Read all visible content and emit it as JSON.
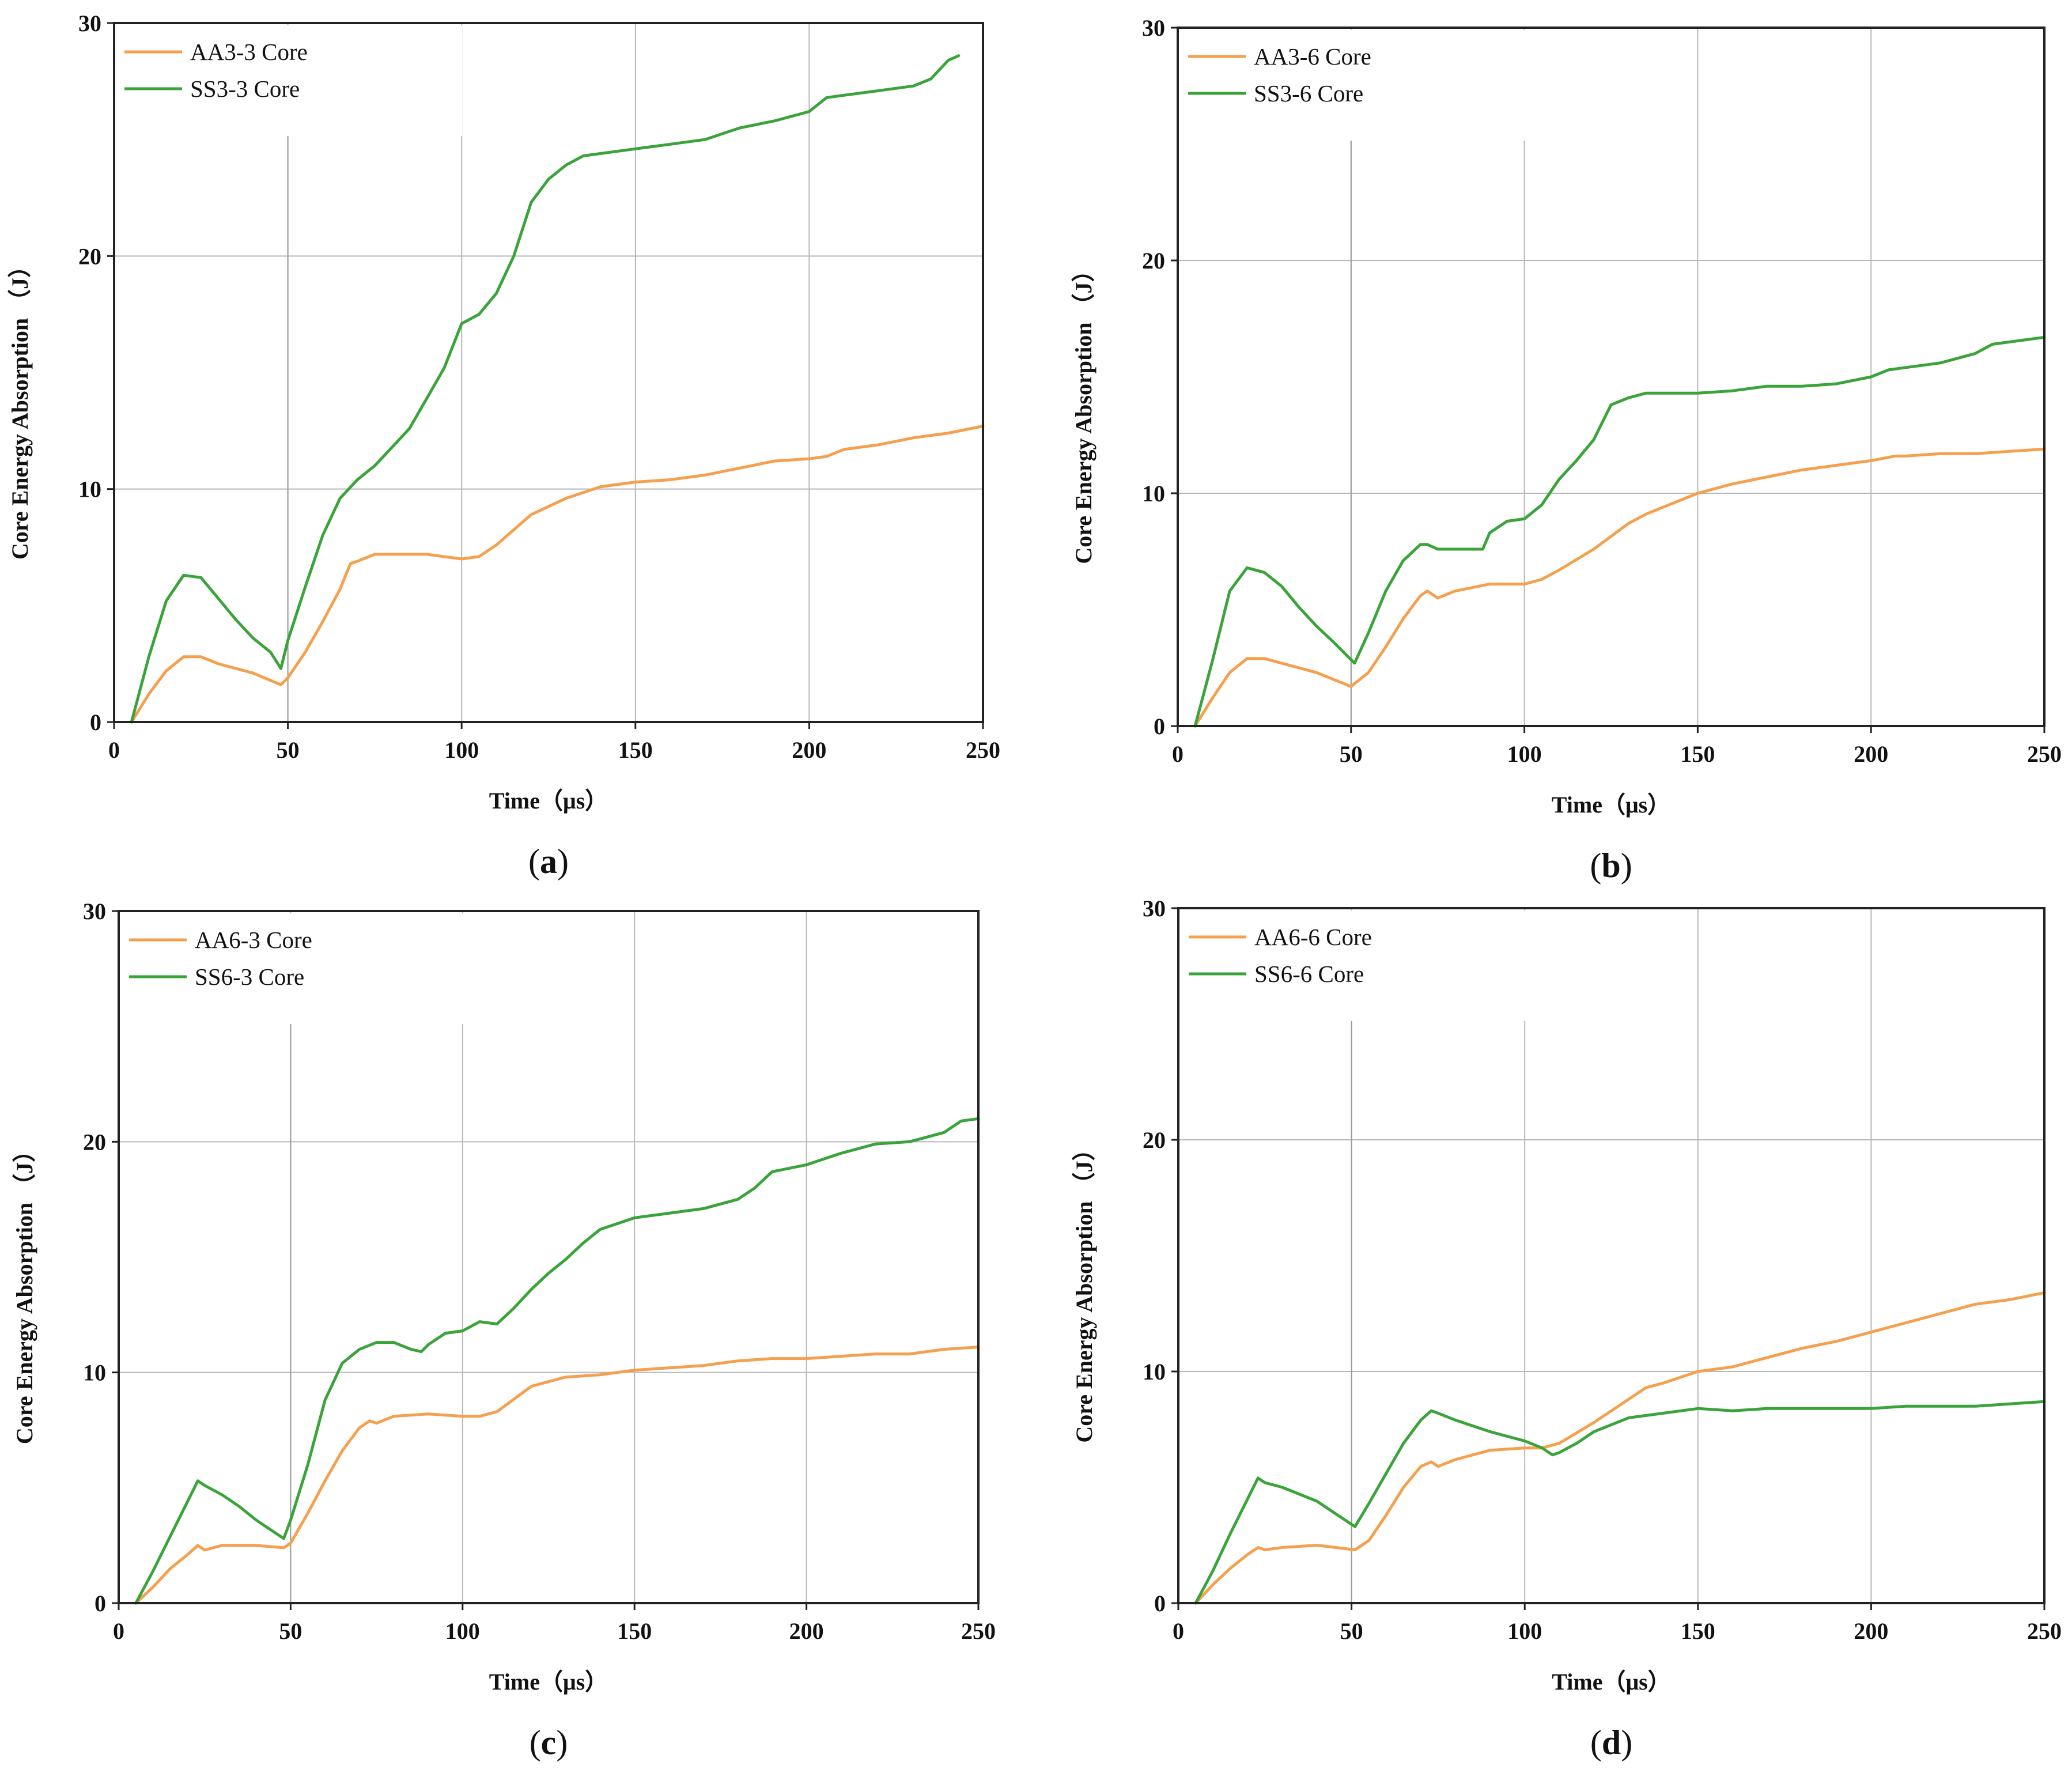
{
  "colors": {
    "orange": "#f5a04e",
    "green": "#3aa33a",
    "grid": "#b8b8b8",
    "axis": "#222222"
  },
  "chart_data": [
    {
      "panel": "a",
      "type": "line",
      "caption_letter": "a",
      "xlabel": "Time（μs）",
      "ylabel": "Core Energy Absorption （J）",
      "xlim": [
        0,
        250
      ],
      "ylim": [
        0,
        30
      ],
      "xticks": [
        "0",
        "50",
        "100",
        "150",
        "200",
        "250"
      ],
      "yticks": [
        "0",
        "10",
        "20",
        "30"
      ],
      "legend_position": "top-left",
      "series": [
        {
          "name": "AA3-3 Core",
          "color": "orange",
          "x": [
            5,
            10,
            15,
            20,
            25,
            30,
            40,
            48,
            50,
            55,
            60,
            65,
            68,
            70,
            75,
            80,
            90,
            100,
            105,
            110,
            120,
            130,
            140,
            150,
            160,
            170,
            180,
            190,
            200,
            205,
            210,
            220,
            230,
            240,
            250
          ],
          "y": [
            0,
            1.2,
            2.2,
            2.8,
            2.8,
            2.5,
            2.1,
            1.6,
            1.9,
            3.0,
            4.3,
            5.7,
            6.8,
            6.9,
            7.2,
            7.2,
            7.2,
            7.0,
            7.1,
            7.6,
            8.9,
            9.6,
            10.1,
            10.3,
            10.4,
            10.6,
            10.9,
            11.2,
            11.3,
            11.4,
            11.7,
            11.9,
            12.2,
            12.4,
            12.7
          ]
        },
        {
          "name": "SS3-3 Core",
          "color": "green",
          "x": [
            5,
            10,
            15,
            20,
            25,
            30,
            35,
            40,
            45,
            48,
            50,
            55,
            60,
            65,
            70,
            75,
            80,
            85,
            90,
            95,
            100,
            105,
            110,
            115,
            120,
            125,
            130,
            135,
            140,
            150,
            160,
            170,
            180,
            190,
            200,
            205,
            210,
            220,
            230,
            235,
            240,
            243
          ],
          "y": [
            0,
            2.8,
            5.2,
            6.3,
            6.2,
            5.3,
            4.4,
            3.6,
            3.0,
            2.3,
            3.5,
            5.8,
            8.0,
            9.6,
            10.4,
            11.0,
            11.8,
            12.6,
            13.9,
            15.2,
            17.1,
            17.5,
            18.4,
            20.0,
            22.3,
            23.3,
            23.9,
            24.3,
            24.4,
            24.6,
            24.8,
            25.0,
            25.5,
            25.8,
            26.2,
            26.8,
            26.9,
            27.1,
            27.3,
            27.6,
            28.4,
            28.6
          ]
        }
      ]
    },
    {
      "panel": "b",
      "type": "line",
      "caption_letter": "b",
      "xlabel": "Time（μs）",
      "ylabel": "Core Energy Absorption （J）",
      "xlim": [
        0,
        250
      ],
      "ylim": [
        0,
        30
      ],
      "xticks": [
        "0",
        "50",
        "100",
        "150",
        "200",
        "250"
      ],
      "yticks": [
        "0",
        "10",
        "20",
        "30"
      ],
      "legend_position": "top-left",
      "series": [
        {
          "name": "AA3-6 Core",
          "color": "orange",
          "x": [
            5,
            10,
            15,
            20,
            25,
            30,
            40,
            50,
            55,
            60,
            65,
            70,
            72,
            75,
            80,
            90,
            100,
            105,
            110,
            120,
            130,
            135,
            140,
            150,
            160,
            170,
            180,
            190,
            200,
            207,
            210,
            220,
            230,
            240,
            250
          ],
          "y": [
            0,
            1.2,
            2.3,
            2.9,
            2.9,
            2.7,
            2.3,
            1.7,
            2.3,
            3.4,
            4.6,
            5.6,
            5.8,
            5.5,
            5.8,
            6.1,
            6.1,
            6.3,
            6.7,
            7.6,
            8.7,
            9.1,
            9.4,
            10.0,
            10.4,
            10.7,
            11.0,
            11.2,
            11.4,
            11.6,
            11.6,
            11.7,
            11.7,
            11.8,
            11.9
          ]
        },
        {
          "name": "SS3-6 Core",
          "color": "green",
          "x": [
            5,
            10,
            15,
            20,
            25,
            30,
            35,
            40,
            45,
            51,
            55,
            60,
            65,
            70,
            72,
            75,
            80,
            85,
            88,
            90,
            95,
            100,
            105,
            110,
            115,
            120,
            125,
            130,
            135,
            140,
            150,
            160,
            170,
            180,
            190,
            200,
            205,
            210,
            220,
            230,
            235,
            240,
            250
          ],
          "y": [
            0,
            2.8,
            5.8,
            6.8,
            6.6,
            6.0,
            5.1,
            4.3,
            3.6,
            2.7,
            4.0,
            5.8,
            7.1,
            7.8,
            7.8,
            7.6,
            7.6,
            7.6,
            7.6,
            8.3,
            8.8,
            8.9,
            9.5,
            10.6,
            11.4,
            12.3,
            13.8,
            14.1,
            14.3,
            14.3,
            14.3,
            14.4,
            14.6,
            14.6,
            14.7,
            15.0,
            15.3,
            15.4,
            15.6,
            16.0,
            16.4,
            16.5,
            16.7
          ]
        }
      ]
    },
    {
      "panel": "c",
      "type": "line",
      "caption_letter": "c",
      "xlabel": "Time（μs）",
      "ylabel": "Core Energy Absorption （J）",
      "xlim": [
        0,
        250
      ],
      "ylim": [
        0,
        30
      ],
      "xticks": [
        "0",
        "50",
        "100",
        "150",
        "200",
        "250"
      ],
      "yticks": [
        "0",
        "10",
        "20",
        "30"
      ],
      "legend_position": "top-left",
      "series": [
        {
          "name": "AA6-3 Core",
          "color": "orange",
          "x": [
            5,
            10,
            15,
            20,
            23,
            25,
            30,
            40,
            48,
            50,
            55,
            60,
            65,
            70,
            73,
            75,
            80,
            90,
            100,
            105,
            110,
            120,
            130,
            140,
            150,
            160,
            170,
            180,
            190,
            200,
            210,
            220,
            230,
            240,
            250
          ],
          "y": [
            0,
            0.7,
            1.5,
            2.1,
            2.5,
            2.3,
            2.5,
            2.5,
            2.4,
            2.6,
            3.9,
            5.3,
            6.6,
            7.6,
            7.9,
            7.8,
            8.1,
            8.2,
            8.1,
            8.1,
            8.3,
            9.4,
            9.8,
            9.9,
            10.1,
            10.2,
            10.3,
            10.5,
            10.6,
            10.6,
            10.7,
            10.8,
            10.8,
            11.0,
            11.1
          ]
        },
        {
          "name": "SS6-3 Core",
          "color": "green",
          "x": [
            5,
            10,
            15,
            20,
            23,
            25,
            30,
            35,
            40,
            45,
            48,
            50,
            55,
            60,
            65,
            70,
            75,
            80,
            85,
            88,
            90,
            95,
            100,
            105,
            110,
            115,
            120,
            125,
            130,
            135,
            140,
            150,
            160,
            170,
            180,
            185,
            190,
            200,
            210,
            220,
            230,
            240,
            245,
            250
          ],
          "y": [
            0,
            1.4,
            2.9,
            4.4,
            5.3,
            5.1,
            4.7,
            4.2,
            3.6,
            3.1,
            2.8,
            3.6,
            6.0,
            8.8,
            10.4,
            11.0,
            11.3,
            11.3,
            11.0,
            10.9,
            11.2,
            11.7,
            11.8,
            12.2,
            12.1,
            12.8,
            13.6,
            14.3,
            14.9,
            15.6,
            16.2,
            16.7,
            16.9,
            17.1,
            17.5,
            18.0,
            18.7,
            19.0,
            19.5,
            19.9,
            20.0,
            20.4,
            20.9,
            21.0
          ]
        }
      ]
    },
    {
      "panel": "d",
      "type": "line",
      "caption_letter": "d",
      "xlabel": "Time（μs）",
      "ylabel": "Core Energy Absorption （J）",
      "xlim": [
        0,
        250
      ],
      "ylim": [
        0,
        30
      ],
      "xticks": [
        "0",
        "50",
        "100",
        "150",
        "200",
        "250"
      ],
      "yticks": [
        "0",
        "10",
        "20",
        "30"
      ],
      "legend_position": "top-left",
      "series": [
        {
          "name": "AA6-6 Core",
          "color": "orange",
          "x": [
            5,
            10,
            15,
            20,
            23,
            25,
            30,
            40,
            51,
            55,
            60,
            65,
            70,
            73,
            75,
            80,
            90,
            100,
            105,
            110,
            120,
            130,
            135,
            140,
            150,
            160,
            170,
            180,
            190,
            200,
            210,
            220,
            230,
            240,
            250
          ],
          "y": [
            0,
            0.8,
            1.5,
            2.1,
            2.4,
            2.3,
            2.4,
            2.5,
            2.3,
            2.7,
            3.8,
            5.0,
            5.9,
            6.1,
            5.9,
            6.2,
            6.6,
            6.7,
            6.7,
            6.9,
            7.8,
            8.8,
            9.3,
            9.5,
            10.0,
            10.2,
            10.6,
            11.0,
            11.3,
            11.7,
            12.1,
            12.5,
            12.9,
            13.1,
            13.4
          ]
        },
        {
          "name": "SS6-6 Core",
          "color": "green",
          "x": [
            5,
            10,
            15,
            20,
            23,
            25,
            30,
            40,
            45,
            51,
            55,
            60,
            65,
            70,
            73,
            75,
            80,
            90,
            100,
            105,
            108,
            110,
            115,
            120,
            130,
            140,
            150,
            160,
            170,
            180,
            190,
            200,
            210,
            220,
            230,
            240,
            250
          ],
          "y": [
            0,
            1.4,
            3.0,
            4.5,
            5.4,
            5.2,
            5.0,
            4.4,
            3.9,
            3.3,
            4.3,
            5.6,
            6.9,
            7.9,
            8.3,
            8.2,
            7.9,
            7.4,
            7.0,
            6.7,
            6.4,
            6.5,
            6.9,
            7.4,
            8.0,
            8.2,
            8.4,
            8.3,
            8.4,
            8.4,
            8.4,
            8.4,
            8.5,
            8.5,
            8.5,
            8.6,
            8.7
          ]
        }
      ]
    }
  ]
}
